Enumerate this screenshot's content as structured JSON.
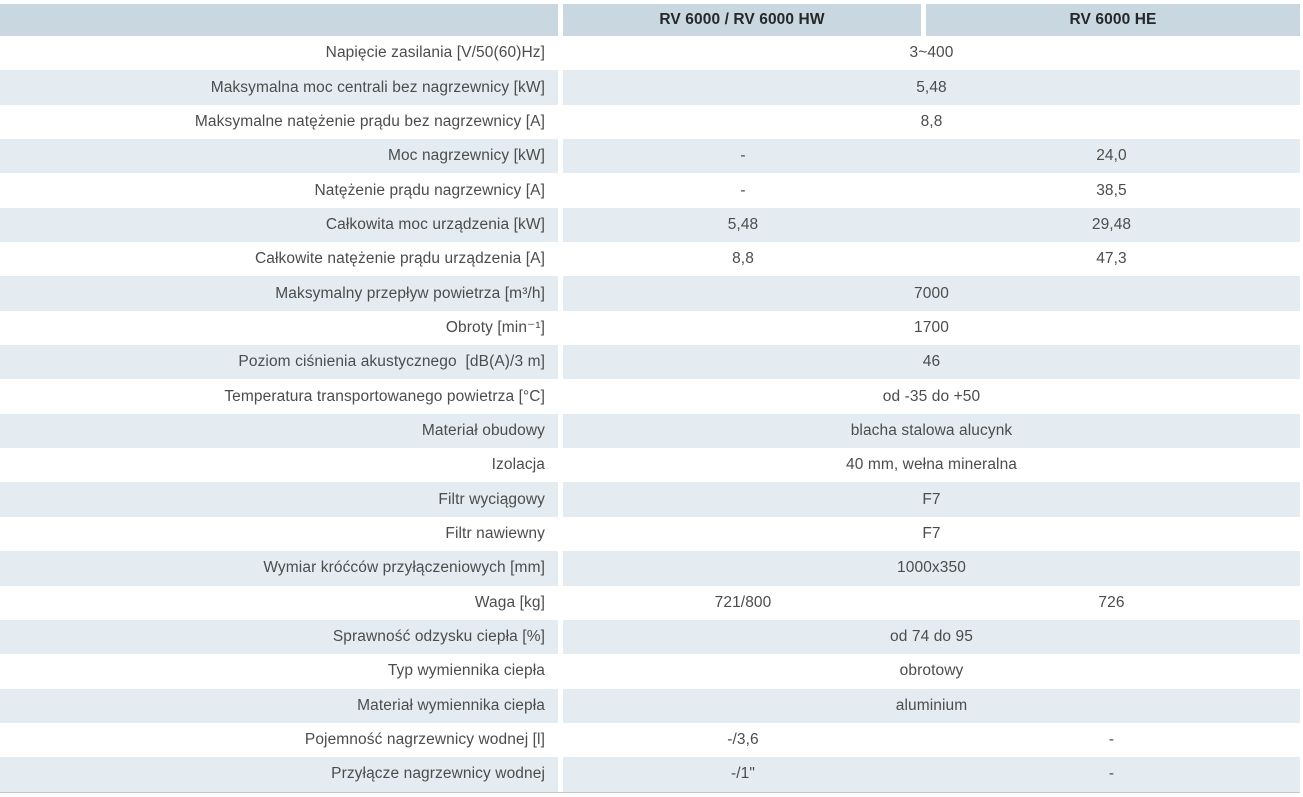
{
  "table": {
    "header": {
      "corner": "",
      "col2": "RV 6000 / RV 6000 HW",
      "col3": "RV 6000 HE"
    },
    "rows": [
      {
        "label": "Napięcie zasilania [V/50(60)Hz]",
        "span": "3~400"
      },
      {
        "label": "Maksymalna moc centrali bez nagrzewnicy [kW]",
        "span": "5,48"
      },
      {
        "label": "Maksymalne natężenie prądu bez nagrzewnicy [A]",
        "span": "8,8"
      },
      {
        "label": "Moc nagrzewnicy [kW]",
        "col2": "-",
        "col3": "24,0"
      },
      {
        "label": "Natężenie prądu nagrzewnicy [A]",
        "col2": "-",
        "col3": "38,5"
      },
      {
        "label": "Całkowita moc urządzenia [kW]",
        "col2": "5,48",
        "col3": "29,48"
      },
      {
        "label": "Całkowite natężenie prądu urządzenia [A]",
        "col2": "8,8",
        "col3": "47,3"
      },
      {
        "label": "Maksymalny przepływ powietrza [m³/h]",
        "span": "7000"
      },
      {
        "label": "Obroty [min⁻¹]",
        "span": "1700"
      },
      {
        "label": "Poziom ciśnienia akustycznego  [dB(A)/3 m]",
        "span": "46"
      },
      {
        "label": "Temperatura transportowanego powietrza [°C]",
        "span": "od -35 do +50"
      },
      {
        "label": "Materiał obudowy",
        "span": "blacha stalowa alucynk"
      },
      {
        "label": "Izolacja",
        "span": "40 mm, wełna mineralna"
      },
      {
        "label": "Filtr wyciągowy",
        "span": "F7"
      },
      {
        "label": "Filtr nawiewny",
        "span": "F7"
      },
      {
        "label": "Wymiar króćców przyłączeniowych [mm]",
        "span": "1000x350"
      },
      {
        "label": "Waga [kg]",
        "col2": "721/800",
        "col3": "726"
      },
      {
        "label": "Sprawność odzysku ciepła [%]",
        "span": "od 74 do 95"
      },
      {
        "label": "Typ wymiennika ciepła",
        "span": "obrotowy"
      },
      {
        "label": "Materiał wymiennika ciepła",
        "span": "aluminium"
      },
      {
        "label": "Pojemność nagrzewnicy wodnej [l]",
        "col2": "-/3,6",
        "col3": "-"
      },
      {
        "label": "Przyłącze nagrzewnicy wodnej",
        "col2": "-/1\"",
        "col3": "-"
      }
    ],
    "colors": {
      "header_bg": "#c9d8e0",
      "row_alt_bg": "#e4ecf1",
      "row_bg": "#ffffff",
      "label_text": "#4c4c4c",
      "header_text": "#26272b"
    }
  }
}
